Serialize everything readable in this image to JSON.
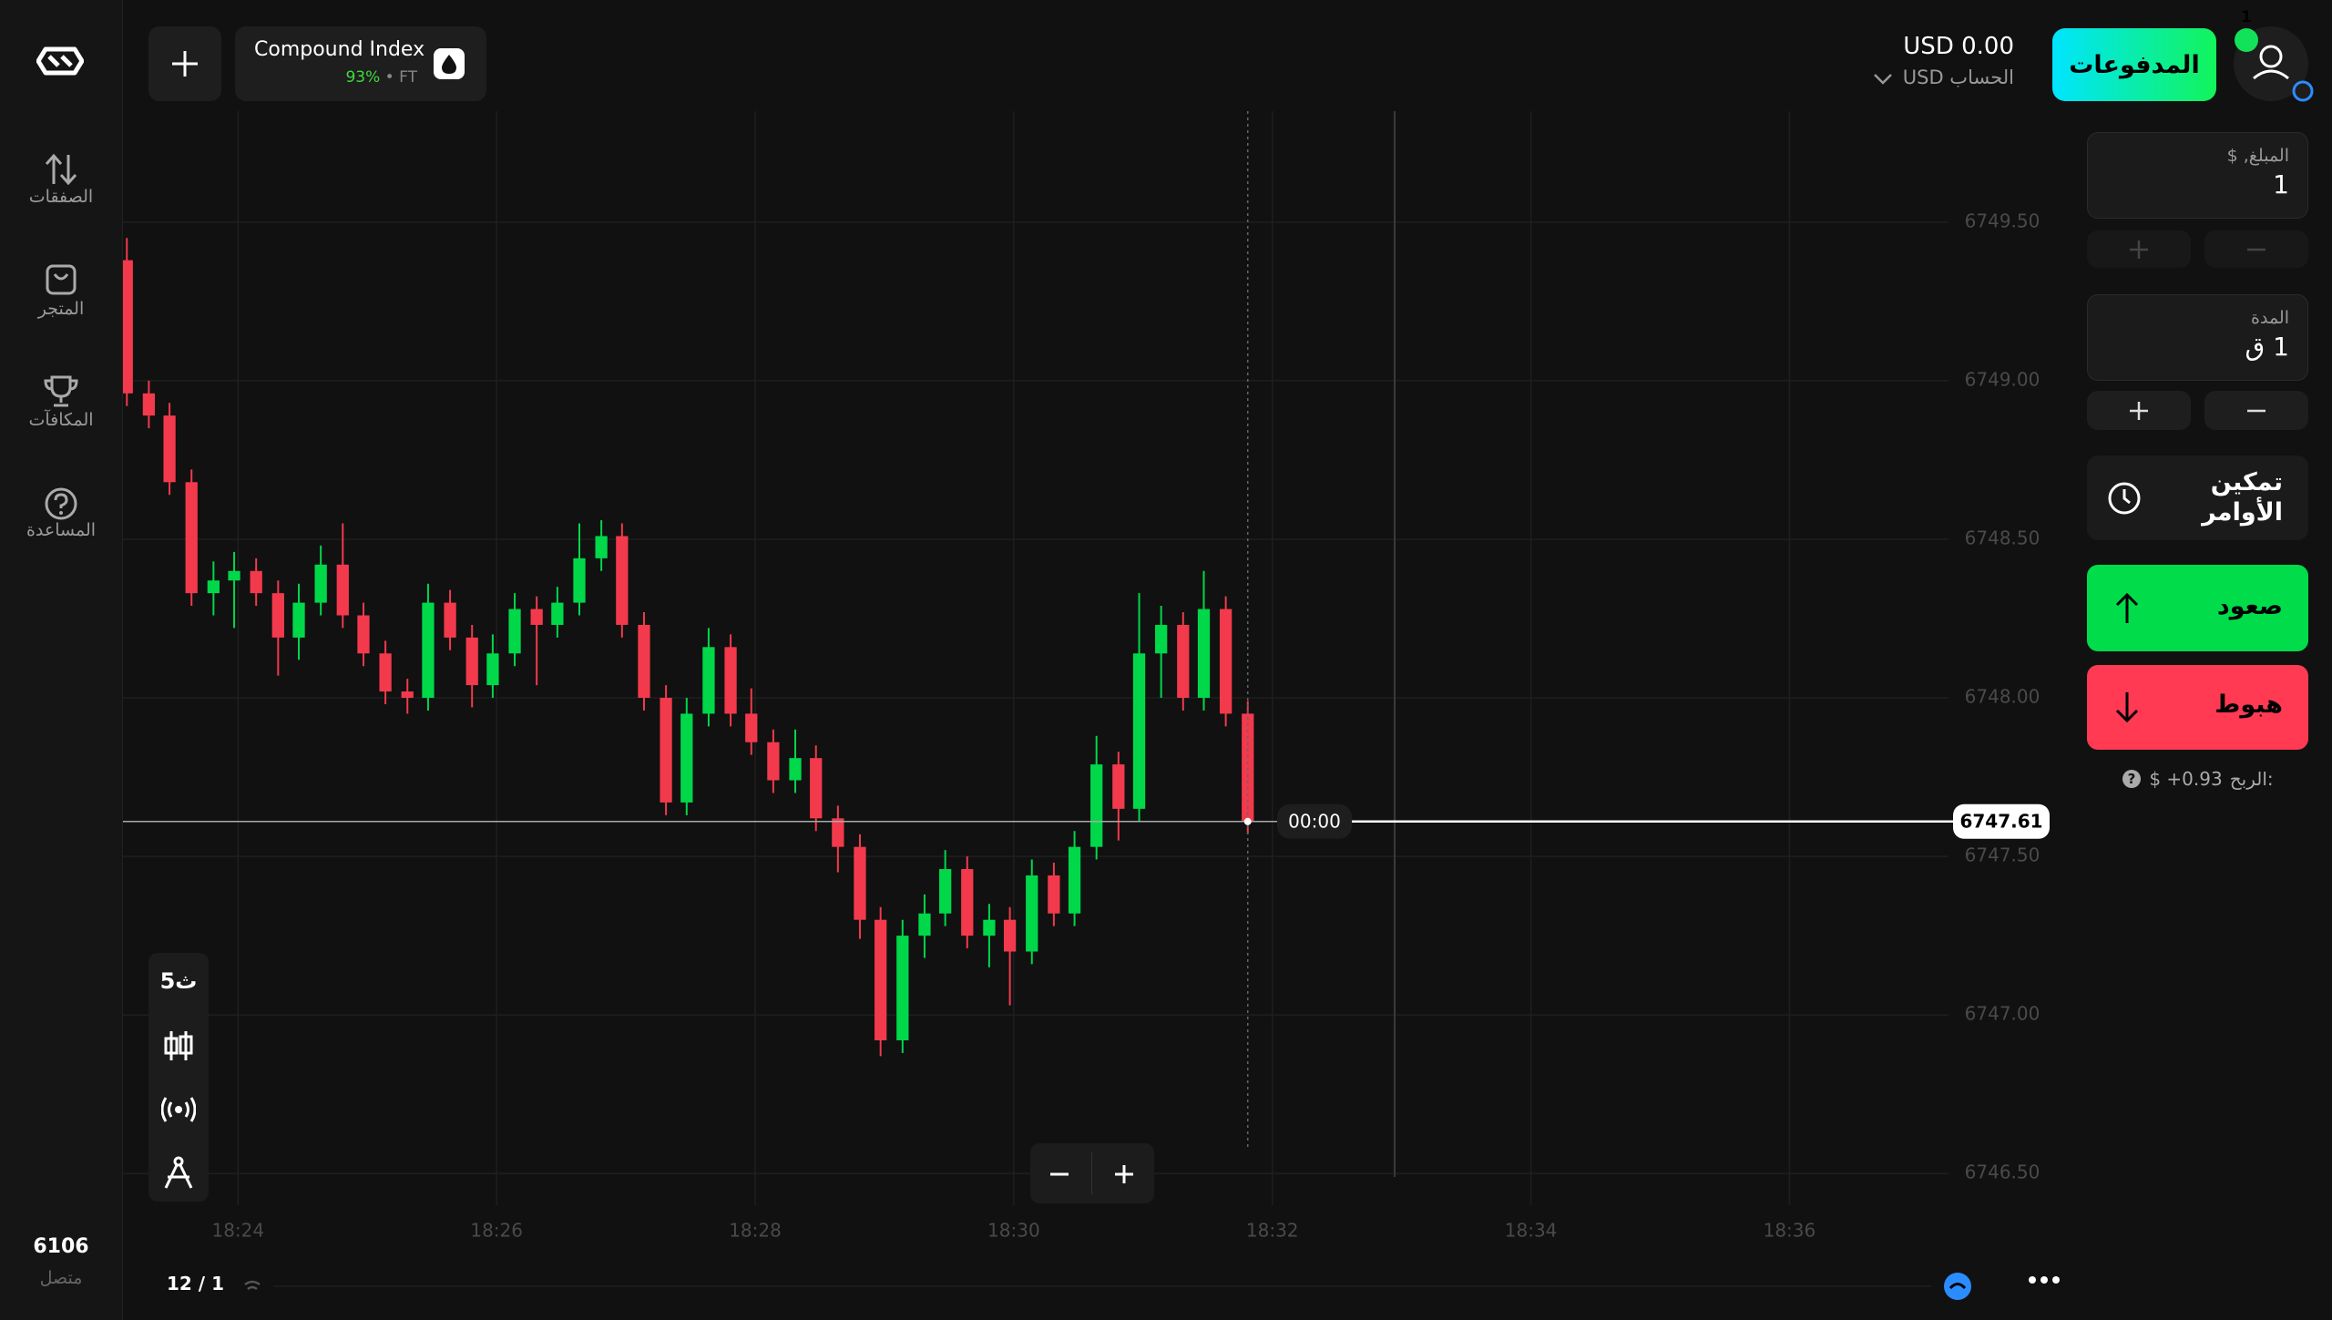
{
  "header": {
    "balance": "USD 0.00",
    "account": "USD الحساب",
    "payments": "المدفوعات",
    "notifications": "1",
    "asset_payout": "93%",
    "asset_market": "FT"
  },
  "sidebar": {
    "items": [
      "الصفقات",
      "المتجر",
      "المكافآت",
      "المساعدة"
    ],
    "online_count": "6106",
    "online_label": "متصل"
  },
  "tools": {
    "timeframe": "5ث"
  },
  "footer": {
    "pages": "12 / 1"
  },
  "trade_panel": {
    "amount_label": "المبلغ, $",
    "amount": "1",
    "duration_label": "المدة",
    "duration": "1 ق",
    "pending_orders": "تمكين الأوامر",
    "up": "صعود",
    "down": "هبوط",
    "profit_label": "الربح:",
    "profit": "$ +0.93"
  },
  "chart_data": {
    "type": "candlestick",
    "title": "Compound Index",
    "x": [
      23.14,
      23.31,
      23.47,
      23.64,
      23.81,
      23.97,
      24.14,
      24.31,
      24.47,
      24.64,
      24.81,
      24.97,
      25.14,
      25.31,
      25.47,
      25.64,
      25.81,
      25.97,
      26.14,
      26.31,
      26.47,
      26.64,
      26.81,
      26.97,
      27.14,
      27.31,
      27.47,
      27.64,
      27.81,
      27.97,
      28.14,
      28.31,
      28.47,
      28.64,
      28.81,
      28.97,
      29.14,
      29.31,
      29.47,
      29.64,
      29.81,
      29.97,
      30.14,
      30.31,
      30.47,
      30.64,
      30.81,
      30.97,
      31.14,
      31.31,
      31.47,
      31.64,
      31.81
    ],
    "open": [
      6749.38,
      6748.96,
      6748.89,
      6748.68,
      6748.33,
      6748.37,
      6748.4,
      6748.33,
      6748.19,
      6748.3,
      6748.42,
      6748.26,
      6748.14,
      6748.02,
      6748.0,
      6748.3,
      6748.19,
      6748.04,
      6748.14,
      6748.28,
      6748.23,
      6748.3,
      6748.44,
      6748.51,
      6748.23,
      6748.0,
      6747.67,
      6747.95,
      6748.16,
      6747.95,
      6747.86,
      6747.74,
      6747.81,
      6747.62,
      6747.53,
      6747.3,
      6746.92,
      6747.25,
      6747.32,
      6747.46,
      6747.25,
      6747.3,
      6747.2,
      6747.44,
      6747.32,
      6747.53,
      6747.79,
      6747.65,
      6748.14,
      6748.23,
      6748.0,
      6748.28,
      6747.95
    ],
    "high": [
      6749.45,
      6749.0,
      6748.93,
      6748.72,
      6748.43,
      6748.46,
      6748.44,
      6748.37,
      6748.36,
      6748.48,
      6748.55,
      6748.3,
      6748.18,
      6748.06,
      6748.36,
      6748.34,
      6748.23,
      6748.2,
      6748.33,
      6748.32,
      6748.35,
      6748.55,
      6748.56,
      6748.55,
      6748.27,
      6748.04,
      6748.0,
      6748.22,
      6748.2,
      6748.03,
      6747.9,
      6747.9,
      6747.85,
      6747.66,
      6747.57,
      6747.34,
      6747.3,
      6747.38,
      6747.52,
      6747.5,
      6747.35,
      6747.34,
      6747.49,
      6747.48,
      6747.58,
      6747.88,
      6747.83,
      6748.33,
      6748.29,
      6748.27,
      6748.4,
      6748.32,
      6747.99
    ],
    "low": [
      6748.92,
      6748.85,
      6748.64,
      6748.29,
      6748.26,
      6748.22,
      6748.29,
      6748.07,
      6748.12,
      6748.26,
      6748.22,
      6748.1,
      6747.98,
      6747.95,
      6747.96,
      6748.15,
      6747.97,
      6748.0,
      6748.1,
      6748.04,
      6748.19,
      6748.26,
      6748.4,
      6748.19,
      6747.96,
      6747.63,
      6747.63,
      6747.91,
      6747.91,
      6747.82,
      6747.7,
      6747.7,
      6747.58,
      6747.45,
      6747.24,
      6746.87,
      6746.88,
      6747.18,
      6747.28,
      6747.21,
      6747.15,
      6747.03,
      6747.16,
      6747.28,
      6747.28,
      6747.49,
      6747.55,
      6747.61,
      6748.0,
      6747.96,
      6747.96,
      6747.91,
      6747.57
    ],
    "close": [
      6748.96,
      6748.89,
      6748.68,
      6748.33,
      6748.37,
      6748.4,
      6748.33,
      6748.19,
      6748.3,
      6748.42,
      6748.26,
      6748.14,
      6748.02,
      6748.0,
      6748.3,
      6748.19,
      6748.04,
      6748.14,
      6748.28,
      6748.23,
      6748.3,
      6748.44,
      6748.51,
      6748.23,
      6748.0,
      6747.67,
      6747.95,
      6748.16,
      6747.95,
      6747.86,
      6747.74,
      6747.81,
      6747.62,
      6747.53,
      6747.3,
      6746.92,
      6747.25,
      6747.32,
      6747.46,
      6747.25,
      6747.3,
      6747.2,
      6747.44,
      6747.32,
      6747.53,
      6747.79,
      6747.65,
      6748.14,
      6748.23,
      6748.0,
      6748.28,
      6747.95,
      6747.61
    ],
    "up_color": "#00d84a",
    "down_color": "#f23a4c",
    "xlim": [
      23.11,
      37.23
    ],
    "xticks": [
      {
        "value": 24,
        "label": "18:24"
      },
      {
        "value": 26,
        "label": "18:26"
      },
      {
        "value": 28,
        "label": "18:28"
      },
      {
        "value": 30,
        "label": "18:30"
      },
      {
        "value": 32,
        "label": "18:32"
      },
      {
        "value": 34,
        "label": "18:34"
      },
      {
        "value": 36,
        "label": "18:36"
      }
    ],
    "ylim": [
      6746.4,
      6749.85
    ],
    "yticks": [
      {
        "value": 6746.5,
        "label": "6746.50"
      },
      {
        "value": 6747,
        "label": "6747.00"
      },
      {
        "value": 6747.5,
        "label": "6747.50"
      },
      {
        "value": 6748,
        "label": "6748.00"
      },
      {
        "value": 6748.5,
        "label": "6748.50"
      },
      {
        "value": 6749,
        "label": "6749.00"
      },
      {
        "value": 6749.5,
        "label": "6749.50"
      }
    ],
    "grid": true,
    "current_price": 6747.61,
    "countdown": "00:00"
  }
}
